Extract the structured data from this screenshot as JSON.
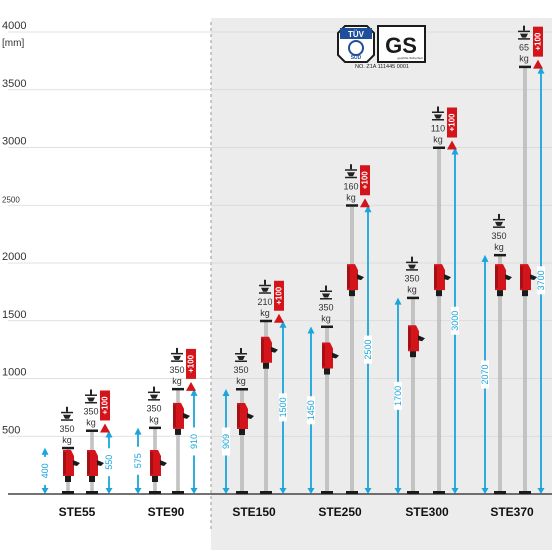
{
  "axis": {
    "unit": "[mm]",
    "ticks": [
      {
        "value": 4000,
        "label": "4000"
      },
      {
        "value": 3500,
        "label": "3500"
      },
      {
        "value": 3000,
        "label": "3000"
      },
      {
        "value": 2500,
        "label": "2500"
      },
      {
        "value": 2000,
        "label": "2000"
      },
      {
        "value": 1500,
        "label": "1500"
      },
      {
        "value": 1000,
        "label": "1000"
      },
      {
        "value": 500,
        "label": "500"
      }
    ]
  },
  "certification": {
    "tuv_top": "TÜV",
    "tuv_bottom": "SÜD",
    "gs_mark": "GS",
    "gs_sub": "geprüfte Sicherheit",
    "approval": "NO. Z1A 111445 0001"
  },
  "colors": {
    "accent_blue": "#1aa5dc",
    "red": "#d4141b",
    "shaded_panel": "#ececec",
    "pole": "#a9a9a9",
    "grid": "#d6d6d6"
  },
  "models": [
    {
      "name": "STE55",
      "props": [
        {
          "min": 400,
          "max": 400,
          "load": "350",
          "unit": "kg",
          "extra": null,
          "lowcap": true
        },
        {
          "min": 550,
          "max": 550,
          "load": "350",
          "unit": "kg",
          "extra": "+100",
          "lowcap": true
        }
      ]
    },
    {
      "name": "STE90",
      "props": [
        {
          "min": 575,
          "max": 575,
          "load": "350",
          "unit": "kg",
          "extra": null,
          "lowcap": false
        },
        {
          "min": 910,
          "max": 910,
          "load": "350",
          "unit": "kg",
          "extra": "+100",
          "lowcap": false
        }
      ]
    },
    {
      "name": "STE150",
      "props": [
        {
          "min": 909,
          "max": 909,
          "load": "350",
          "unit": "kg",
          "extra": null,
          "lowcap": false
        },
        {
          "min": 1500,
          "max": 1500,
          "load": "210",
          "unit": "kg",
          "extra": "+100",
          "lowcap": false
        }
      ]
    },
    {
      "name": "STE250",
      "props": [
        {
          "min": 1450,
          "max": 1450,
          "load": "350",
          "unit": "kg",
          "extra": null,
          "lowcap": false
        },
        {
          "min": 2500,
          "max": 2500,
          "load": "160",
          "unit": "kg",
          "extra": "+100",
          "lowcap": false
        }
      ]
    },
    {
      "name": "STE300",
      "props": [
        {
          "min": 1700,
          "max": 1700,
          "load": "350",
          "unit": "kg",
          "extra": null,
          "lowcap": false
        },
        {
          "min": 3000,
          "max": 3000,
          "load": "110",
          "unit": "kg",
          "extra": "+100",
          "lowcap": false
        }
      ]
    },
    {
      "name": "STE370",
      "props": [
        {
          "min": 2070,
          "max": 2070,
          "load": "350",
          "unit": "kg",
          "extra": null,
          "lowcap": false
        },
        {
          "min": 3700,
          "max": 3700,
          "load": "65",
          "unit": "kg",
          "extra": "+100",
          "lowcap": false
        }
      ]
    }
  ]
}
